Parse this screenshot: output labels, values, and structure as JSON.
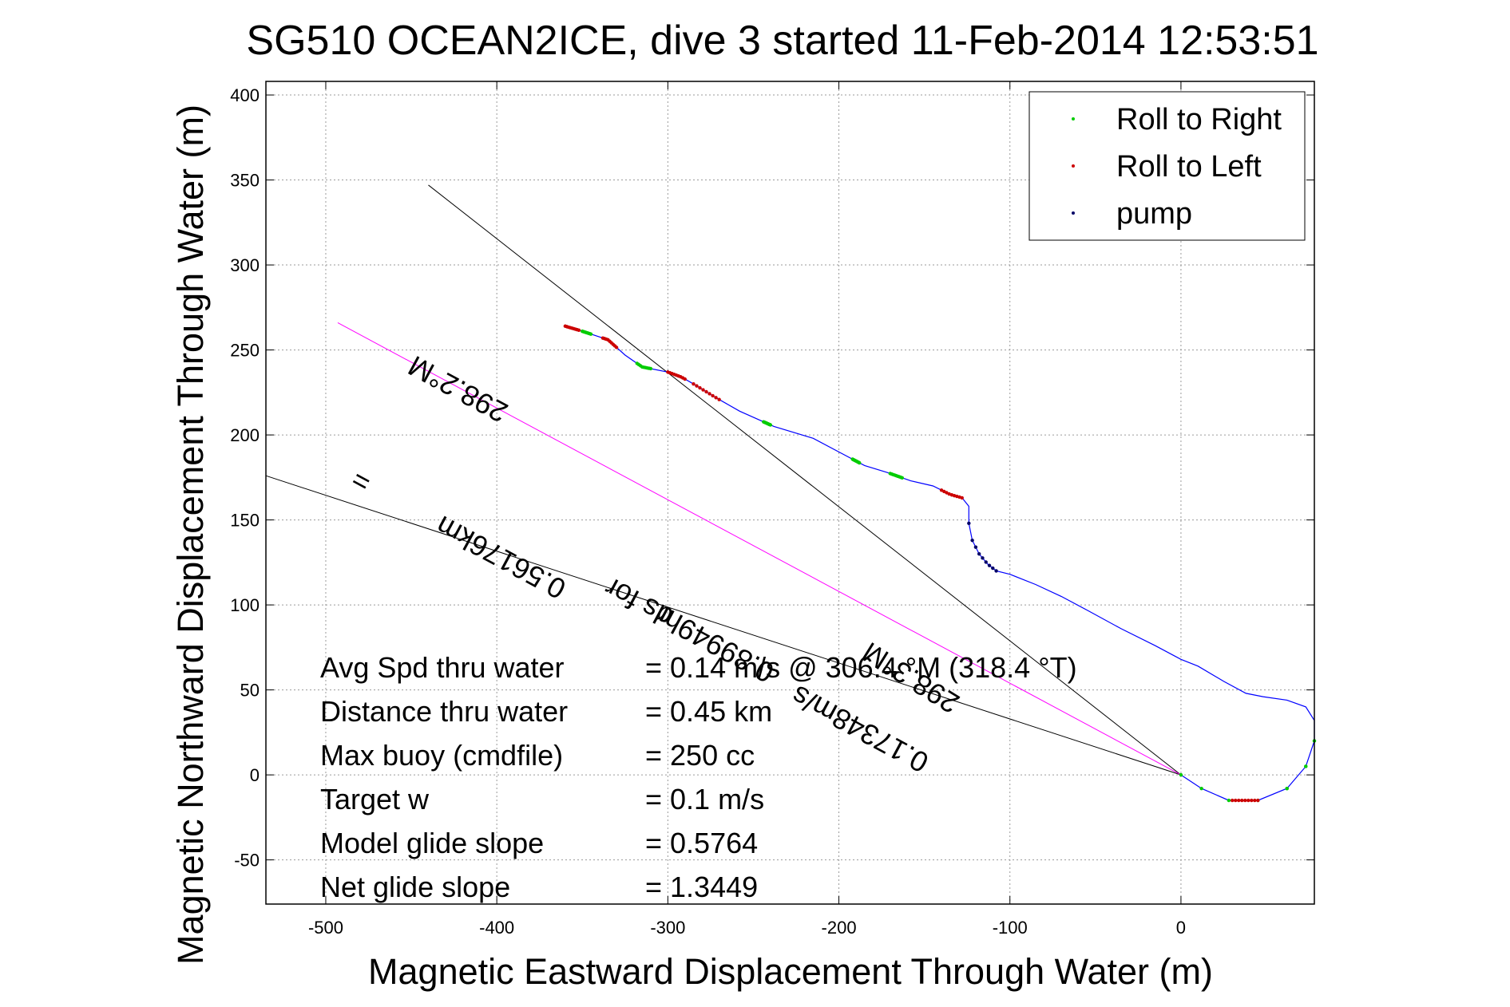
{
  "chart_data": {
    "type": "line",
    "title": "SG510 OCEAN2ICE, dive 3 started 11-Feb-2014 12:53:51",
    "xlabel": "Magnetic Eastward Displacement Through Water (m)",
    "ylabel": "Magnetic Northward Displacement Through Water (m)",
    "xlim": [
      -535,
      78
    ],
    "ylim": [
      -76,
      408
    ],
    "xticks": [
      -500,
      -400,
      -300,
      -200,
      -100,
      0
    ],
    "yticks": [
      -50,
      0,
      50,
      100,
      150,
      200,
      250,
      300,
      350,
      400
    ],
    "grid": true,
    "legend_position": "top-right",
    "legend": [
      {
        "label": "Roll to Right",
        "color": "#00cc00"
      },
      {
        "label": "Roll to Left",
        "color": "#cc0000"
      },
      {
        "label": "pump",
        "color": "#000066"
      }
    ],
    "track": {
      "color": "#0000ff",
      "x": [
        0,
        12,
        28,
        45,
        62,
        73,
        78,
        78,
        73,
        62,
        48,
        38,
        25,
        10,
        0,
        -15,
        -35,
        -55,
        -70,
        -85,
        -100,
        -108,
        -113,
        -118,
        -122,
        -124,
        -124,
        -128,
        -135,
        -145,
        -158,
        -172,
        -185,
        -200,
        -215,
        -238,
        -258,
        -272,
        -285,
        -292,
        -300,
        -315,
        -325,
        -335,
        -350,
        -360
      ],
      "y": [
        0,
        -8,
        -15,
        -15,
        -8,
        5,
        20,
        32,
        40,
        44,
        46,
        48,
        55,
        64,
        68,
        76,
        86,
        97,
        105,
        112,
        118,
        120,
        124,
        130,
        138,
        148,
        158,
        163,
        165,
        170,
        173,
        178,
        182,
        190,
        198,
        205,
        214,
        222,
        230,
        234,
        237,
        240,
        247,
        256,
        261,
        264
      ]
    },
    "roll_right_segments": [
      {
        "x": [
          0,
          12,
          28,
          45,
          62,
          73,
          78,
          78,
          73,
          62
        ]
      },
      {
        "x": [
          -310,
          -318
        ]
      },
      {
        "x": [
          -163,
          -170
        ]
      },
      {
        "x": [
          -188,
          -192
        ]
      },
      {
        "x": [
          -240,
          -244
        ]
      },
      {
        "x": [
          -345,
          -350
        ]
      }
    ],
    "roll_left_segments": [
      {
        "x": [
          30,
          45
        ]
      },
      {
        "x": [
          -128,
          -140
        ]
      },
      {
        "x": [
          -270,
          -285
        ]
      },
      {
        "x": [
          -290,
          -300
        ]
      },
      {
        "x": [
          -330,
          -338
        ]
      },
      {
        "x": [
          -352,
          -360
        ]
      }
    ],
    "pump_segments": [
      {
        "x": [
          -108,
          -124
        ]
      }
    ],
    "reference_lines": [
      {
        "x": [
          0,
          -440
        ],
        "y": [
          0,
          347
        ],
        "color": "#000000"
      },
      {
        "x": [
          0,
          -535
        ],
        "y": [
          0,
          176
        ],
        "color": "#000000"
      },
      {
        "x": [
          0,
          -493
        ],
        "y": [
          0,
          266
        ],
        "color": "#ff00ff"
      }
    ],
    "annotations": [
      {
        "text": "298.2°M",
        "x": -420,
        "y": 232,
        "angle": 28.4
      },
      {
        "text": "0.56176km",
        "x": -395,
        "y": 133,
        "angle": 28.4
      },
      {
        "text": "=",
        "x": -395,
        "y": 133,
        "angle": 28.4
      },
      {
        "text": "0.89949hr",
        "x": -270,
        "y": 82,
        "angle": 28.4
      },
      {
        "text": "ds for",
        "x": -270,
        "y": 82,
        "angle": 28.4
      },
      {
        "text": "0.17348m/s",
        "x": -185,
        "y": 32,
        "angle": 28.4
      },
      {
        "text": "298.3°M",
        "x": -155,
        "y": 62,
        "angle": 31.8
      }
    ]
  },
  "stats": [
    {
      "label": "Avg Spd thru water",
      "value": "=  0.14 m/s @ 306.4 °M (318.4 °T)"
    },
    {
      "label": "Distance thru water",
      "value": "=  0.45 km"
    },
    {
      "label": "Max buoy (cmdfile)",
      "value": "= 250 cc"
    },
    {
      "label": "Target w",
      "value": "= 0.1 m/s"
    },
    {
      "label": "Model glide slope",
      "value": "= 0.5764"
    },
    {
      "label": "Net glide slope",
      "value": "= 1.3449"
    }
  ]
}
